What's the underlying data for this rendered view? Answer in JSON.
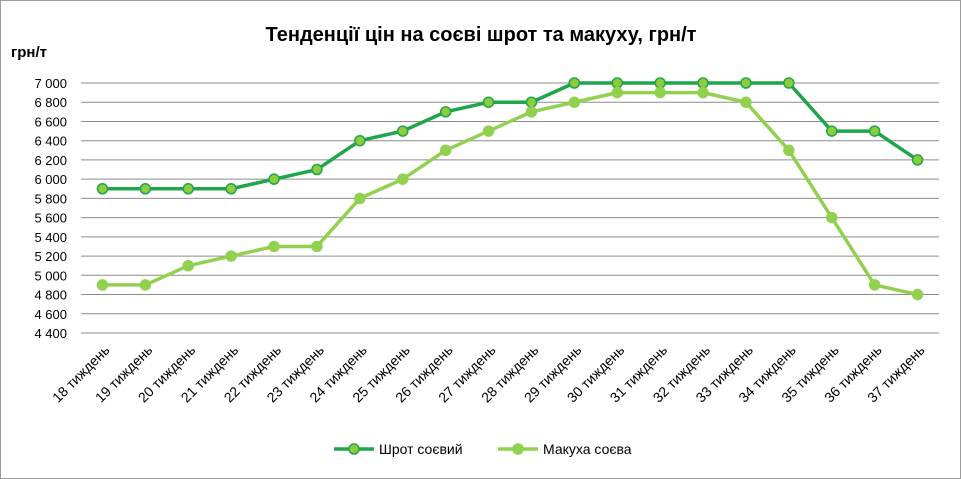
{
  "chart_data": {
    "type": "line",
    "title": "Тенденції цін на соєві шрот та макуху, грн/т",
    "ylabel": "грн/т",
    "xlabel": "",
    "ylim": [
      4400,
      7000
    ],
    "ytick_step": 200,
    "y_ticks": [
      "4 400",
      "4 600",
      "4 800",
      "5 000",
      "5 200",
      "5 400",
      "5 600",
      "5 800",
      "6 000",
      "6 200",
      "6 400",
      "6 600",
      "6 800",
      "7 000"
    ],
    "grid": true,
    "legend_position": "bottom",
    "categories": [
      "18 тиждень",
      "19 тиждень",
      "20 тиждень",
      "21 тиждень",
      "22 тиждень",
      "23 тиждень",
      "24 тиждень",
      "25 тиждень",
      "26 тиждень",
      "27 тиждень",
      "28 тиждень",
      "29 тиждень",
      "30 тиждень",
      "31 тиждень",
      "32 тиждень",
      "33 тиждень",
      "34 тиждень",
      "35 тиждень",
      "36 тиждень",
      "37 тиждень"
    ],
    "series": [
      {
        "name": "Шрот соєвий",
        "color": "#1fa64a",
        "marker_fill": "#8ccc3e",
        "values": [
          5900,
          5900,
          5900,
          5900,
          6000,
          6100,
          6400,
          6500,
          6700,
          6800,
          6800,
          7000,
          7000,
          7000,
          7000,
          7000,
          7000,
          6500,
          6500,
          6200
        ]
      },
      {
        "name": "Макуха соєва",
        "color": "#92d050",
        "marker_fill": "#92d050",
        "values": [
          4900,
          4900,
          5100,
          5200,
          5300,
          5300,
          5800,
          6000,
          6300,
          6500,
          6700,
          6800,
          6900,
          6900,
          6900,
          6800,
          6300,
          5600,
          4900,
          4800
        ]
      }
    ]
  }
}
